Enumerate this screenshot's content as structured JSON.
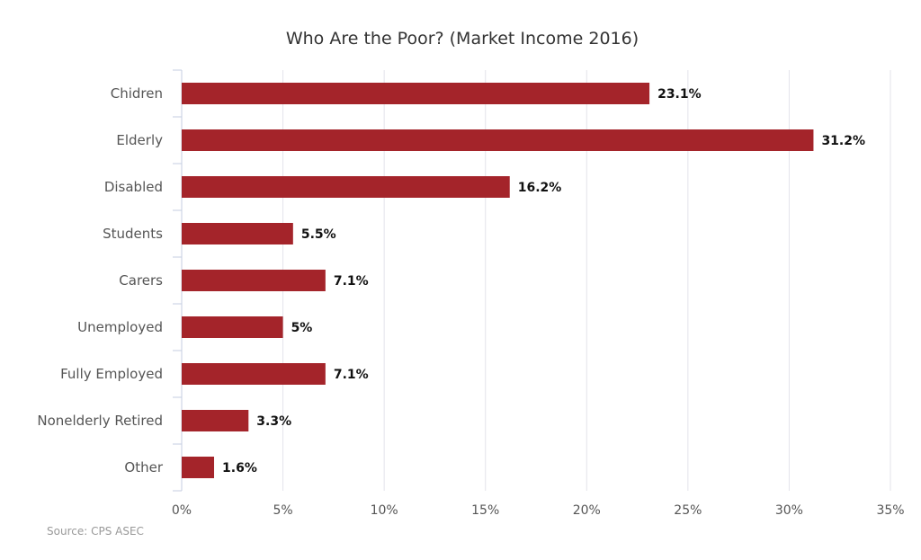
{
  "chart_data": {
    "type": "bar",
    "orientation": "horizontal",
    "title": "Who Are the Poor? (Market Income 2016)",
    "categories": [
      "Chidren",
      "Elderly",
      "Disabled",
      "Students",
      "Carers",
      "Unemployed",
      "Fully Employed",
      "Nonelderly Retired",
      "Other"
    ],
    "values": [
      23.1,
      31.2,
      16.2,
      5.5,
      7.1,
      5,
      7.1,
      3.3,
      1.6
    ],
    "data_labels": [
      "23.1%",
      "31.2%",
      "16.2%",
      "5.5%",
      "7.1%",
      "5%",
      "7.1%",
      "3.3%",
      "1.6%"
    ],
    "ticks": [
      0,
      5,
      10,
      15,
      20,
      25,
      30,
      35
    ],
    "tick_labels": [
      "0%",
      "5%",
      "10%",
      "15%",
      "20%",
      "25%",
      "30%",
      "35%"
    ],
    "xlim": [
      0,
      35
    ],
    "xlabel": "",
    "ylabel": "",
    "grid": true,
    "bar_color": "#a4242a",
    "source": "Source: CPS ASEC"
  }
}
